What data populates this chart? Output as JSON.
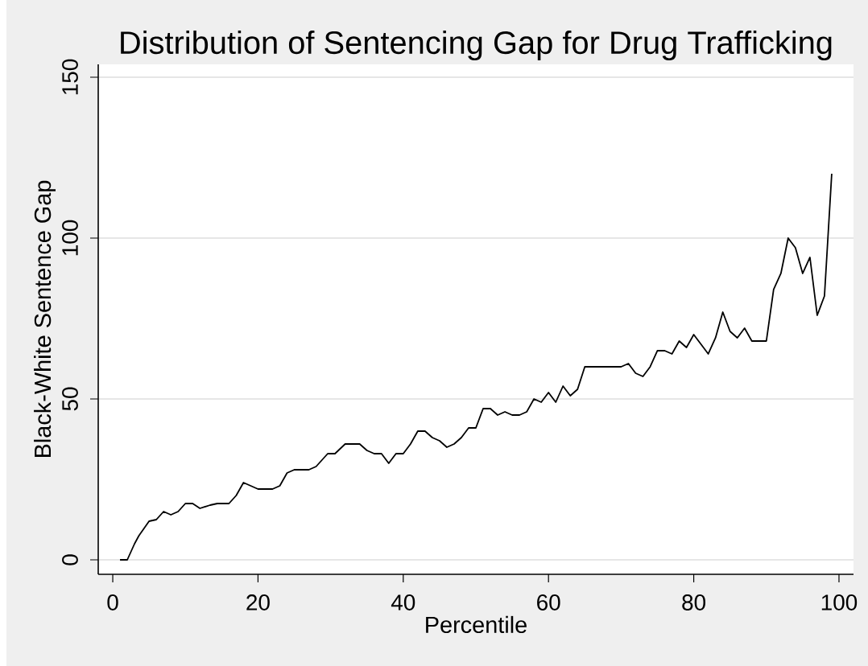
{
  "chart_data": {
    "type": "line",
    "title": "Distribution of Sentencing Gap for Drug Trafficking",
    "xlabel": "Percentile",
    "ylabel": "Black-White Sentence Gap",
    "x": [
      1,
      2,
      3,
      3.6,
      5,
      6,
      7,
      8,
      9,
      10,
      11,
      12,
      13.4,
      14.4,
      16,
      17,
      18,
      19,
      20,
      22,
      23,
      24,
      25,
      27,
      28,
      29.6,
      30.6,
      32,
      34,
      35,
      36,
      37,
      38,
      39,
      40,
      41,
      42,
      43,
      44,
      45,
      46,
      47,
      48,
      49,
      50,
      51,
      52,
      53,
      54,
      55,
      56,
      57,
      58,
      59,
      60,
      61,
      62,
      63,
      64,
      65,
      66,
      67,
      68,
      69,
      70,
      71,
      72,
      73,
      74,
      75,
      76,
      77,
      78,
      79,
      80,
      81,
      82,
      83,
      84,
      85,
      86,
      87,
      88,
      89,
      90,
      91,
      92,
      93,
      94,
      95,
      96,
      97,
      98,
      99
    ],
    "values": [
      0,
      0,
      5,
      7.5,
      12,
      12.5,
      15,
      14,
      15,
      17.5,
      17.5,
      16,
      17,
      17.5,
      17.5,
      20,
      24,
      23,
      22,
      22,
      23,
      27,
      28,
      28,
      29,
      33,
      33,
      36,
      36,
      34,
      33,
      33,
      30,
      33,
      33,
      36,
      40,
      40,
      38,
      37,
      35,
      36,
      38,
      41,
      41,
      47,
      47,
      45,
      46,
      45,
      45,
      46,
      50,
      49,
      52,
      49,
      54,
      51,
      53,
      60,
      60,
      60,
      60,
      60,
      60,
      61,
      58,
      57,
      60,
      65,
      65,
      64,
      68,
      66,
      70,
      67,
      64,
      69,
      77,
      71,
      69,
      72,
      68,
      68,
      68,
      84,
      89,
      100,
      97,
      89,
      94,
      76,
      82,
      120
    ],
    "color": "#000000",
    "xlim": [
      -2,
      102
    ],
    "ylim": [
      -4.5,
      154
    ],
    "xticks": [
      0,
      20,
      40,
      60,
      80,
      100
    ],
    "yticks": [
      0,
      50,
      100,
      150
    ],
    "grid": "y"
  }
}
